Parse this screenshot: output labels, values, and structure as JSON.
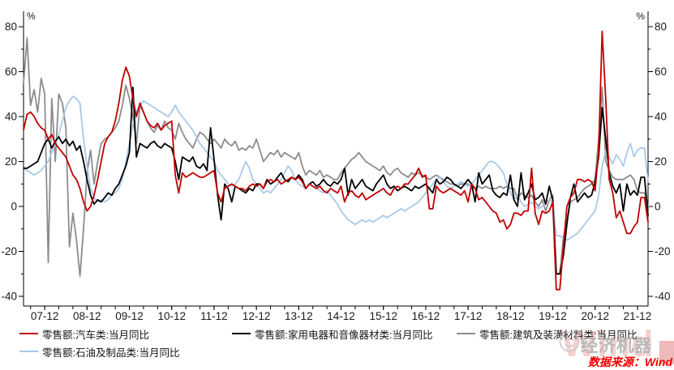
{
  "chart_data": {
    "type": "line",
    "title": "",
    "x_start": "2007-06",
    "x_end": "2022-03",
    "x_frequency": "monthly",
    "x_axis": {
      "tick_labels": [
        "07-12",
        "08-12",
        "09-12",
        "10-12",
        "11-12",
        "12-12",
        "13-12",
        "14-12",
        "15-12",
        "16-12",
        "17-12",
        "18-12",
        "19-12",
        "20-12",
        "21-12"
      ],
      "tick_month_indices": [
        6,
        18,
        30,
        42,
        54,
        66,
        78,
        90,
        102,
        114,
        126,
        138,
        150,
        162,
        174
      ],
      "minor_tick_every_months": 4
    },
    "y_axis": {
      "min": -40,
      "max": 80,
      "ticks": [
        80,
        60,
        40,
        20,
        0,
        -20,
        -40
      ],
      "minor_ticks": [
        70,
        50,
        30,
        10,
        -10,
        -30
      ],
      "unit_label": "%",
      "mirrored_right": true,
      "grid": false
    },
    "series": [
      {
        "name": "零售额:汽车类:当月同比",
        "color": "#c00000",
        "width": 1.8,
        "values": [
          34,
          41,
          42,
          40,
          37,
          35,
          34,
          30,
          32,
          28,
          26,
          24,
          22,
          18,
          14,
          12,
          8,
          2,
          -2,
          0,
          5,
          12,
          20,
          28,
          31,
          33,
          38,
          46,
          56,
          62,
          58,
          48,
          40,
          46,
          42,
          38,
          36,
          35,
          37,
          34,
          36,
          37,
          38,
          14,
          6,
          15,
          13,
          14,
          15,
          14,
          13,
          13,
          14,
          15,
          16,
          6,
          2,
          8,
          9,
          10,
          9,
          8,
          8,
          7,
          9,
          10,
          9,
          10,
          8,
          11,
          12,
          11,
          12,
          10,
          11,
          12,
          13,
          12,
          13,
          11,
          8,
          10,
          9,
          8,
          9,
          7,
          6,
          8,
          7,
          6,
          9,
          2,
          6,
          7,
          5,
          4,
          6,
          3,
          4,
          5,
          6,
          7,
          8,
          6,
          5,
          8,
          9,
          8,
          10,
          10,
          12,
          14,
          17,
          13,
          14,
          -1,
          -1,
          9,
          7,
          6,
          7,
          8,
          7,
          6,
          5,
          7,
          2,
          10,
          8,
          3,
          4,
          2,
          0,
          -2,
          -3,
          -7,
          -6,
          -10,
          -8,
          -3,
          -3,
          -4,
          -2,
          -2,
          17,
          -3,
          -8,
          -2,
          -3,
          -2,
          2,
          -37,
          -37,
          -18,
          0,
          4,
          6,
          12,
          12,
          11,
          12,
          11,
          7,
          25,
          78,
          48,
          12,
          6,
          -5,
          -2,
          -7,
          -12,
          -12,
          -9,
          -7,
          4,
          4,
          -7
        ]
      },
      {
        "name": "零售额:家用电器和音像器材类:当月同比",
        "color": "#000000",
        "width": 1.8,
        "values": [
          17,
          17,
          18,
          19,
          20,
          24,
          28,
          30,
          26,
          29,
          31,
          28,
          30,
          27,
          29,
          25,
          27,
          20,
          12,
          5,
          1,
          3,
          2,
          4,
          6,
          5,
          8,
          10,
          14,
          18,
          24,
          53,
          22,
          28,
          27,
          26,
          28,
          29,
          27,
          26,
          28,
          27,
          26,
          20,
          12,
          22,
          21,
          20,
          22,
          18,
          17,
          19,
          16,
          35,
          21,
          5,
          -6,
          10,
          8,
          2,
          9,
          8,
          7,
          6,
          8,
          7,
          10,
          10,
          8,
          12,
          10,
          11,
          13,
          15,
          12,
          11,
          13,
          12,
          14,
          12,
          8,
          10,
          11,
          9,
          10,
          12,
          10,
          9,
          11,
          10,
          12,
          17,
          5,
          12,
          8,
          10,
          12,
          9,
          8,
          7,
          10,
          12,
          14,
          10,
          8,
          9,
          7,
          8,
          9,
          8,
          7,
          9,
          8,
          9,
          10,
          8,
          6,
          12,
          10,
          11,
          13,
          12,
          10,
          9,
          8,
          10,
          12,
          10,
          2,
          15,
          10,
          12,
          14,
          7,
          5,
          4,
          6,
          5,
          14,
          3,
          0,
          15,
          3,
          6,
          10,
          3,
          4,
          6,
          1,
          9,
          3,
          -30,
          -30,
          -22,
          -8,
          4,
          10,
          2,
          4,
          6,
          4,
          5,
          11,
          22,
          44,
          30,
          15,
          9,
          6,
          10,
          -2,
          10,
          5,
          7,
          5,
          13,
          13,
          -4
        ]
      },
      {
        "name": "零售额:建筑及装潢材料类:当月同比",
        "color": "#8c8c8c",
        "width": 1.8,
        "values": [
          55,
          75,
          45,
          52,
          42,
          57,
          50,
          -25,
          48,
          20,
          50,
          46,
          35,
          -18,
          -3,
          -15,
          -31,
          -10,
          15,
          25,
          10,
          20,
          28,
          30,
          31,
          33,
          35,
          38,
          45,
          54,
          48,
          40,
          28,
          45,
          42,
          38,
          35,
          33,
          36,
          34,
          38,
          35,
          34,
          30,
          37,
          33,
          30,
          28,
          26,
          30,
          33,
          32,
          30,
          28,
          30,
          28,
          26,
          30,
          28,
          27,
          29,
          25,
          26,
          25,
          27,
          26,
          30,
          25,
          20,
          22,
          24,
          23,
          25,
          22,
          24,
          23,
          22,
          21,
          24,
          18,
          14,
          16,
          15,
          14,
          16,
          13,
          14,
          13,
          12,
          12,
          15,
          17,
          19,
          21,
          22,
          24,
          22,
          20,
          19,
          18,
          17,
          16,
          18,
          15,
          14,
          16,
          17,
          15,
          14,
          13,
          15,
          14,
          15,
          14,
          13,
          12,
          13,
          14,
          13,
          12,
          11,
          10,
          10,
          9,
          10,
          10,
          10,
          9,
          8,
          9,
          8,
          9,
          8,
          8,
          8,
          9,
          8,
          9,
          8,
          8,
          3,
          6,
          5,
          4,
          5,
          2,
          0,
          3,
          -2,
          3,
          5,
          -30,
          -30,
          -14,
          -6,
          2,
          3,
          4,
          6,
          8,
          9,
          10,
          12,
          30,
          53,
          20,
          16,
          13,
          12,
          12,
          12,
          13,
          14,
          12,
          7,
          6,
          6,
          0
        ]
      },
      {
        "name": "零售额:石油及制品类:当月同比",
        "color": "#a9c9e8",
        "width": 1.8,
        "values": [
          17,
          16,
          15,
          14,
          15,
          16,
          18,
          20,
          24,
          28,
          32,
          38,
          44,
          47,
          49,
          48,
          46,
          30,
          18,
          8,
          4,
          2,
          3,
          2,
          3,
          5,
          6,
          8,
          12,
          20,
          28,
          36,
          42,
          45,
          47,
          46,
          45,
          44,
          43,
          42,
          41,
          40,
          42,
          45,
          42,
          40,
          38,
          36,
          34,
          31,
          28,
          26,
          24,
          22,
          20,
          16,
          14,
          12,
          10,
          9,
          10,
          12,
          16,
          20,
          17,
          12,
          10,
          8,
          6,
          7,
          6,
          8,
          10,
          12,
          15,
          18,
          16,
          12,
          10,
          9,
          8,
          10,
          9,
          8,
          7,
          6,
          7,
          5,
          3,
          1,
          -2,
          -4,
          -6,
          -7,
          -8,
          -7,
          -6,
          -7,
          -6,
          -7,
          -6,
          -5,
          -4,
          -5,
          -4,
          -3,
          -2,
          -1,
          -2,
          -1,
          0,
          1,
          2,
          4,
          6,
          8,
          10,
          12,
          13,
          11,
          9,
          8,
          9,
          10,
          11,
          10,
          9,
          10,
          12,
          14,
          16,
          18,
          20,
          20,
          19,
          17,
          15,
          10,
          6,
          3,
          5,
          2,
          0,
          1,
          2,
          0,
          -1,
          0,
          2,
          3,
          2,
          -13,
          -13,
          -14,
          -15,
          -14,
          -13,
          -12,
          -10,
          -8,
          -6,
          -4,
          -2,
          5,
          18,
          25,
          22,
          19,
          23,
          21,
          18,
          24,
          28,
          22,
          25,
          26,
          26,
          11
        ]
      }
    ],
    "legend_position": "bottom-left",
    "legend_rows": [
      [
        0,
        1,
        2
      ],
      [
        3
      ]
    ]
  },
  "footer": {
    "source_text": "数据来源：Wind",
    "watermark_text": "经济机器",
    "watermark_bg_text": "Wind"
  }
}
